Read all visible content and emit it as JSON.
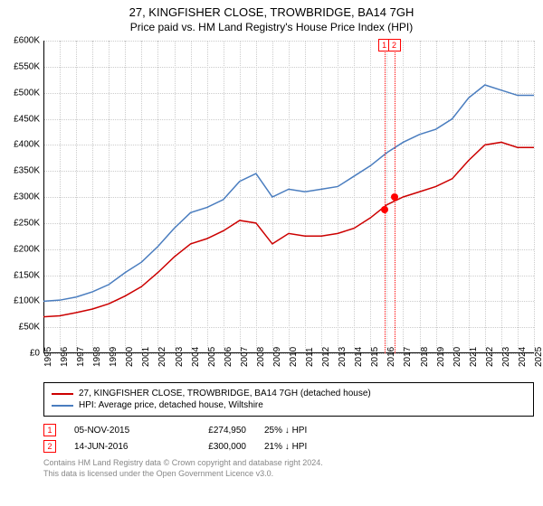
{
  "title": {
    "line1": "27, KINGFISHER CLOSE, TROWBRIDGE, BA14 7GH",
    "line2": "Price paid vs. HM Land Registry's House Price Index (HPI)",
    "fontsize1": 13,
    "fontsize2": 12,
    "color": "#000000"
  },
  "chart": {
    "type": "line",
    "background_color": "#ffffff",
    "grid_color": "#cccccc",
    "ylim": [
      0,
      600000
    ],
    "ytick_step": 50000,
    "y_prefix": "£",
    "y_suffix": "K",
    "y_divisor": 1000,
    "x_categories": [
      "1995",
      "1996",
      "1997",
      "1998",
      "1999",
      "2000",
      "2001",
      "2002",
      "2003",
      "2004",
      "2005",
      "2006",
      "2007",
      "2008",
      "2009",
      "2010",
      "2011",
      "2012",
      "2013",
      "2014",
      "2015",
      "2016",
      "2017",
      "2018",
      "2019",
      "2020",
      "2021",
      "2022",
      "2023",
      "2024",
      "2025"
    ],
    "label_fontsize": 10,
    "series": [
      {
        "name": "property",
        "label": "27, KINGFISHER CLOSE, TROWBRIDGE, BA14 7GH (detached house)",
        "color": "#cc0000",
        "line_width": 1.5,
        "values": [
          70000,
          72000,
          78000,
          85000,
          95000,
          110000,
          128000,
          155000,
          185000,
          210000,
          220000,
          235000,
          255000,
          250000,
          210000,
          230000,
          225000,
          225000,
          230000,
          240000,
          260000,
          285000,
          300000,
          310000,
          320000,
          335000,
          370000,
          400000,
          405000,
          395000,
          395000
        ]
      },
      {
        "name": "hpi",
        "label": "HPI: Average price, detached house, Wiltshire",
        "color": "#4a7dbf",
        "line_width": 1.5,
        "values": [
          100000,
          102000,
          108000,
          118000,
          132000,
          155000,
          175000,
          205000,
          240000,
          270000,
          280000,
          295000,
          330000,
          345000,
          300000,
          315000,
          310000,
          315000,
          320000,
          340000,
          360000,
          385000,
          405000,
          420000,
          430000,
          450000,
          490000,
          515000,
          505000,
          495000,
          495000
        ]
      }
    ],
    "sale_markers": [
      {
        "id": "1",
        "x_index": 20.85,
        "y_value": 274950,
        "date": "05-NOV-2015",
        "price": "£274,950",
        "diff": "25% ↓ HPI"
      },
      {
        "id": "2",
        "x_index": 21.45,
        "y_value": 300000,
        "date": "14-JUN-2016",
        "price": "£300,000",
        "diff": "21% ↓ HPI"
      }
    ],
    "marker_color": "#ff0000"
  },
  "footer": {
    "line1": "Contains HM Land Registry data © Crown copyright and database right 2024.",
    "line2": "This data is licensed under the Open Government Licence v3.0.",
    "color": "#888888",
    "fontsize": 9
  }
}
